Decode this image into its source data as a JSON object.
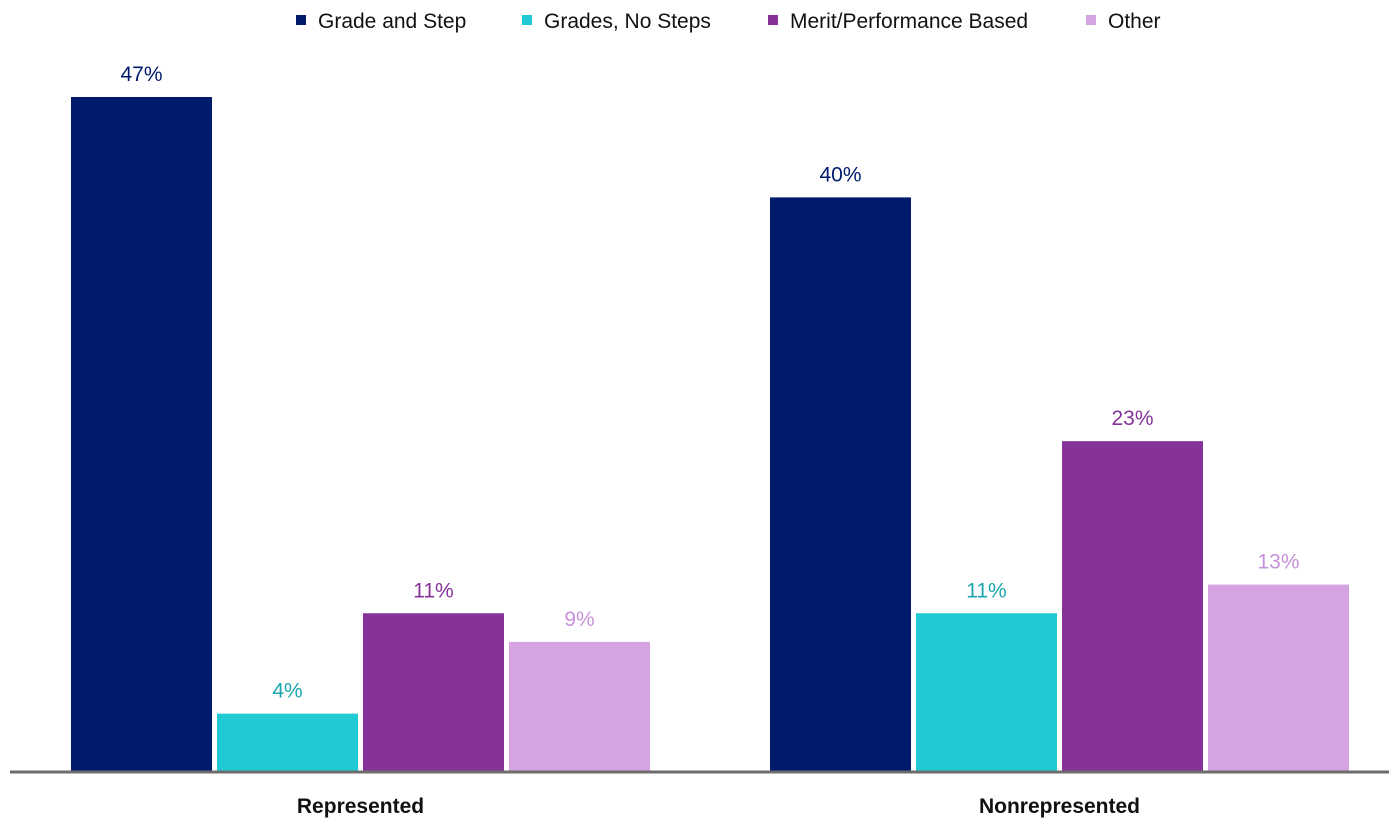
{
  "chart_data": {
    "type": "bar",
    "categories": [
      "Represented",
      "Nonrepresented"
    ],
    "series": [
      {
        "name": "Grade and Step",
        "values": [
          47,
          40
        ],
        "color": "#001B6B",
        "label_color": "#001B6B"
      },
      {
        "name": "Grades, No Steps",
        "values": [
          4,
          11
        ],
        "color": "#1FCAD3",
        "label_color": "#1BA5AE"
      },
      {
        "name": "Merit/Performance Based",
        "values": [
          11,
          23
        ],
        "color": "#863399",
        "label_color": "#863399"
      },
      {
        "name": "Other",
        "values": [
          9,
          13
        ],
        "color": "#D5A3E2",
        "label_color": "#C690DA"
      }
    ],
    "value_suffix": "%",
    "ylim": [
      0,
      47
    ],
    "grid": false,
    "legend_position": "top",
    "axis_color": "#6D6D6D"
  }
}
